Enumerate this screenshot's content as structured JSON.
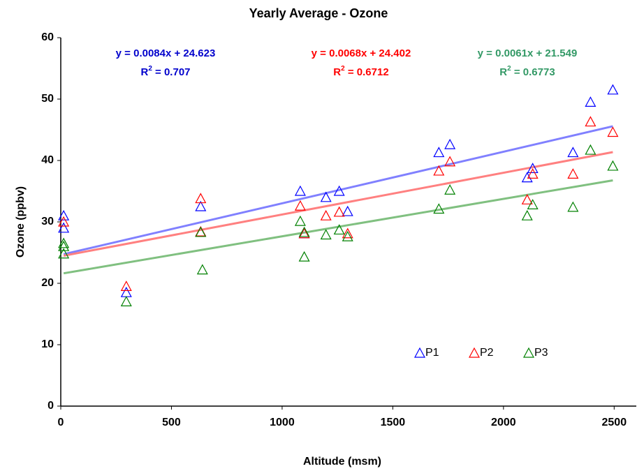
{
  "chart_data": {
    "type": "scatter",
    "title": "Yearly Average - Ozone",
    "x_label": "Altitude (msm)",
    "y_label": "Ozone (ppbv)",
    "xlim": [
      0,
      2600
    ],
    "ylim": [
      0,
      60
    ],
    "xticks": [
      0,
      500,
      1000,
      1500,
      2000,
      2500
    ],
    "yticks": [
      0,
      10,
      20,
      30,
      40,
      50,
      60
    ],
    "grid": false,
    "legend": "lower right",
    "series": [
      {
        "name": "P1",
        "color": "#0000ff",
        "trend_color": "#8080ff",
        "label_color": "#0000cc",
        "x": [
          13,
          13,
          296,
          632,
          1082,
          1100,
          1198,
          1258,
          1296,
          1708,
          1758,
          2107,
          2132,
          2314,
          2393,
          2494
        ],
        "values": [
          31,
          29,
          18.5,
          32.5,
          35,
          28.1,
          34,
          35,
          31.7,
          41.3,
          42.6,
          37.2,
          38.7,
          41.3,
          49.5,
          51.5
        ],
        "trend": {
          "slope": 0.0084,
          "intercept": 24.623,
          "equation": "y = 0.0084x + 24.623",
          "r2_prefix": "R",
          "r2_sup": "2",
          "r2_text": " = 0.707"
        }
      },
      {
        "name": "P2",
        "color": "#ff0000",
        "trend_color": "#ff8080",
        "label_color": "#ff0000",
        "x": [
          13,
          296,
          632,
          632,
          1082,
          1100,
          1198,
          1258,
          1296,
          1708,
          1758,
          2107,
          2132,
          2314,
          2393,
          2494
        ],
        "values": [
          30,
          19.5,
          33.8,
          28.4,
          32.6,
          28.1,
          31,
          31.6,
          28.1,
          38.3,
          39.8,
          33.6,
          37.8,
          37.8,
          46.3,
          44.6
        ],
        "trend": {
          "slope": 0.0068,
          "intercept": 24.402,
          "equation": "y = 0.0068x + 24.402",
          "r2_prefix": "R",
          "r2_sup": "2",
          "r2_text": " = 0.6712"
        }
      },
      {
        "name": "P3",
        "color": "#008000",
        "trend_color": "#80c080",
        "label_color": "#339966",
        "x": [
          13,
          13,
          13,
          296,
          632,
          640,
          1082,
          1100,
          1100,
          1198,
          1258,
          1296,
          1708,
          1758,
          2107,
          2132,
          2314,
          2393,
          2494
        ],
        "values": [
          26.5,
          26,
          24.8,
          17,
          28.3,
          22.2,
          30.1,
          24.3,
          28.3,
          27.9,
          28.7,
          27.6,
          32.1,
          35.2,
          31,
          32.8,
          32.4,
          41.7,
          39.1
        ],
        "trend": {
          "slope": 0.0061,
          "intercept": 21.549,
          "equation": "y = 0.0061x + 21.549",
          "r2_prefix": "R",
          "r2_sup": "2",
          "r2_text": " = 0.6773"
        }
      }
    ]
  }
}
